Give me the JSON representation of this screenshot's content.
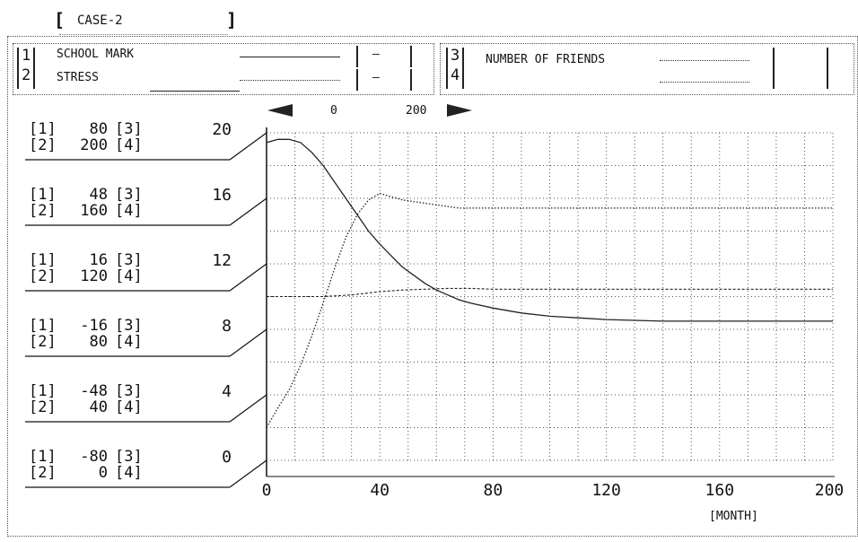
{
  "case_title": "CASE-2",
  "legend": {
    "left": {
      "index_top": "1",
      "index_bottom": "2",
      "label_top": "SCHOOL MARK",
      "label_bottom": "STRESS",
      "value_top": "—",
      "value_bottom": "—"
    },
    "right": {
      "index_top": "3",
      "index_bottom": "4",
      "label_top": "NUMBER OF FRIENDS"
    }
  },
  "scroll": {
    "min": "0",
    "max": "200"
  },
  "axis_rows": [
    {
      "v1": "80",
      "v2": "200",
      "y": "20"
    },
    {
      "v1": "48",
      "v2": "160",
      "y": "16"
    },
    {
      "v1": "16",
      "v2": "120",
      "y": "12"
    },
    {
      "v1": "-16",
      "v2": "80",
      "y": "8"
    },
    {
      "v1": "-48",
      "v2": "40",
      "y": "4"
    },
    {
      "v1": "-80",
      "v2": "0",
      "y": "0"
    }
  ],
  "x_ticks": [
    "0",
    "40",
    "80",
    "120",
    "160",
    "200"
  ],
  "xlabel": "[MONTH]",
  "chart_data": {
    "type": "line",
    "xlabel": "[MONTH]",
    "xlim": [
      0,
      200
    ],
    "ylim": [
      0,
      20
    ],
    "grid": true,
    "series": [
      {
        "name": "SCHOOL MARK",
        "style": "solid",
        "x": [
          0,
          4,
          8,
          12,
          16,
          20,
          24,
          28,
          32,
          36,
          40,
          44,
          48,
          52,
          56,
          60,
          64,
          68,
          72,
          80,
          90,
          100,
          110,
          120,
          140,
          160,
          180,
          200
        ],
        "y": [
          19.4,
          19.6,
          19.6,
          19.4,
          18.8,
          18.0,
          17.0,
          16.0,
          15.0,
          14.0,
          13.2,
          12.5,
          11.8,
          11.3,
          10.8,
          10.4,
          10.1,
          9.8,
          9.6,
          9.3,
          9.0,
          8.8,
          8.7,
          8.6,
          8.5,
          8.5,
          8.5,
          8.5
        ]
      },
      {
        "name": "STRESS",
        "style": "dotted",
        "x": [
          0,
          4,
          8,
          12,
          16,
          20,
          24,
          28,
          32,
          36,
          40,
          44,
          48,
          52,
          56,
          60,
          64,
          68,
          80,
          100,
          120,
          160,
          200
        ],
        "y": [
          2.0,
          3.2,
          4.3,
          5.8,
          7.6,
          9.6,
          11.7,
          13.6,
          15.0,
          15.9,
          16.3,
          16.1,
          15.9,
          15.8,
          15.7,
          15.6,
          15.5,
          15.4,
          15.4,
          15.4,
          15.4,
          15.4,
          15.4
        ]
      },
      {
        "name": "NUMBER OF FRIENDS",
        "style": "dashed",
        "x": [
          0,
          20,
          30,
          40,
          48,
          56,
          64,
          72,
          80,
          100,
          120,
          160,
          200
        ],
        "y": [
          10.0,
          10.0,
          10.1,
          10.3,
          10.4,
          10.45,
          10.5,
          10.5,
          10.45,
          10.45,
          10.45,
          10.45,
          10.45
        ]
      }
    ]
  }
}
